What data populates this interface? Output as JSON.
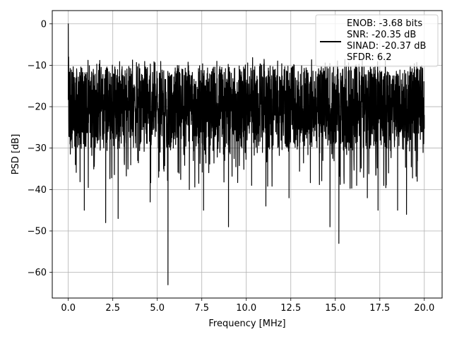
{
  "chart_data": {
    "type": "line",
    "xlabel": "Frequency [MHz]",
    "ylabel": "PSD [dB]",
    "xlim": [
      -0.9,
      21.0
    ],
    "ylim": [
      -66.2,
      3.2
    ],
    "xticks": [
      0.0,
      2.5,
      5.0,
      7.5,
      10.0,
      12.5,
      15.0,
      17.5,
      20.0
    ],
    "xtick_labels": [
      "0.0",
      "2.5",
      "5.0",
      "7.5",
      "10.0",
      "12.5",
      "15.0",
      "17.5",
      "20.0"
    ],
    "yticks": [
      0,
      -10,
      -20,
      -30,
      -40,
      -50,
      -60
    ],
    "ytick_labels": [
      "0",
      "−10",
      "−20",
      "−30",
      "−40",
      "−50",
      "−60"
    ],
    "grid": true,
    "legend_position": "top-right",
    "line_color": "#000000",
    "series": [
      {
        "description": "Dense noise-like PSD spectrum; band roughly -10 to -30 dB with deep dips",
        "x": [
          0.0,
          0.02,
          0.05,
          0.1,
          0.2,
          0.4,
          0.6,
          0.9,
          1.3,
          1.8,
          2.1,
          2.4,
          2.8,
          3.3,
          3.9,
          4.6,
          5.1,
          5.6,
          6.0,
          6.8,
          7.6,
          8.3,
          9.0,
          9.6,
          10.3,
          11.1,
          11.8,
          12.4,
          13.0,
          13.6,
          14.3,
          14.7,
          15.2,
          15.7,
          16.2,
          16.8,
          17.4,
          17.9,
          18.5,
          19.0,
          19.6,
          20.0
        ],
        "values": [
          0.0,
          -8.0,
          -21.0,
          -29.0,
          -15.0,
          -34.0,
          -20.0,
          -45.0,
          -18.0,
          -30.0,
          -48.0,
          -22.0,
          -47.0,
          -20.0,
          -33.0,
          -43.0,
          -17.0,
          -63.0,
          -18.0,
          -40.0,
          -45.0,
          -22.0,
          -49.0,
          -18.0,
          -39.0,
          -44.0,
          -20.0,
          -42.0,
          -24.0,
          -37.0,
          -33.0,
          -49.0,
          -53.0,
          -20.0,
          -39.0,
          -42.0,
          -45.0,
          -30.0,
          -45.0,
          -46.0,
          -38.0,
          -22.0
        ]
      }
    ],
    "legend": [
      "ENOB: -3.68 bits",
      "SNR: -20.35 dB",
      "SINAD: -20.37 dB",
      "SFDR: 6.2"
    ]
  }
}
